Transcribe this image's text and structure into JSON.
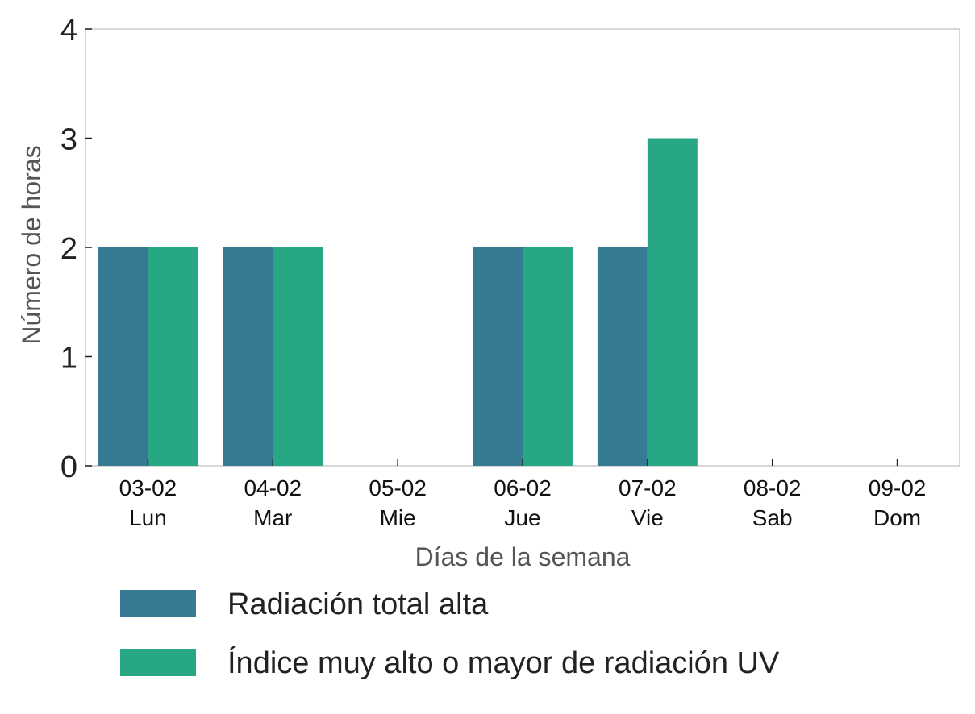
{
  "chart_data": {
    "type": "bar",
    "categories": [
      "03-02\nLun",
      "04-02\nMar",
      "05-02\nMie",
      "06-02\nJue",
      "07-02\nVie",
      "08-02\nSab",
      "09-02\nDom"
    ],
    "series": [
      {
        "name": "Radiación total alta",
        "values": [
          2,
          2,
          0,
          2,
          2,
          0,
          0
        ],
        "color": "#367a93"
      },
      {
        "name": "Índice muy alto o mayor de radiación UV",
        "values": [
          2,
          2,
          0,
          2,
          3,
          0,
          0
        ],
        "color": "#27a784"
      }
    ],
    "xlabel": "Días de la semana",
    "ylabel": "Número de horas",
    "ylim": [
      0,
      4
    ],
    "yticks": [
      "0",
      "1",
      "2",
      "3",
      "4"
    ],
    "grid": false,
    "legend_placement": "bottom"
  }
}
